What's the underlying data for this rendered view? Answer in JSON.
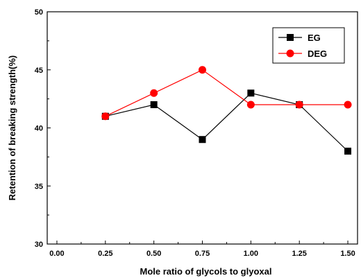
{
  "chart_data": {
    "type": "line",
    "title": "",
    "xlabel": "Mole ratio of glycols to glyoxal",
    "ylabel": "Retention of breaking strength(%)",
    "xlim": [
      -0.05,
      1.55
    ],
    "ylim": [
      30,
      50
    ],
    "xticks": [
      "0.00",
      "0.25",
      "0.50",
      "0.75",
      "1.00",
      "1.25",
      "1.50"
    ],
    "yticks": [
      "30",
      "35",
      "40",
      "45",
      "50"
    ],
    "grid": false,
    "legend_position": "top-right",
    "x": [
      0.25,
      0.5,
      0.75,
      1.0,
      1.25,
      1.5
    ],
    "series": [
      {
        "name": "EG",
        "color": "#000000",
        "marker": "square",
        "values": [
          41,
          42,
          39,
          43,
          42,
          38
        ]
      },
      {
        "name": "DEG",
        "color": "#ff0000",
        "marker": "circle",
        "values": [
          41,
          43,
          45,
          42,
          42,
          42
        ]
      }
    ]
  }
}
